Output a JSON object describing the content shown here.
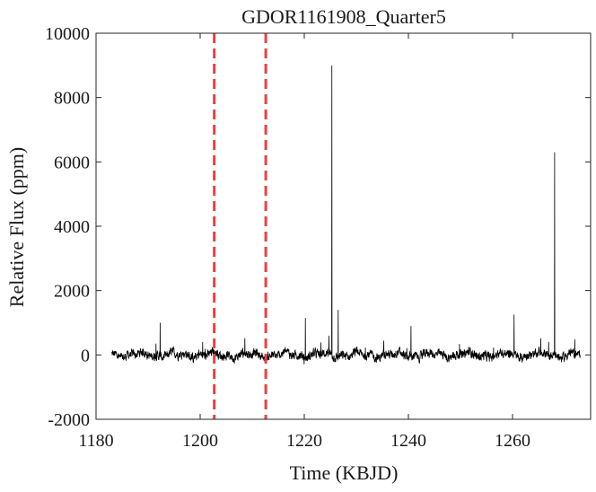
{
  "chart_data": {
    "type": "line",
    "title": "GDOR1161908_Quarter5",
    "xlabel": "Time (KBJD)",
    "ylabel": "Relative Flux (ppm)",
    "xlim": [
      1180,
      1275
    ],
    "ylim": [
      -2000,
      10000
    ],
    "xticks": [
      "1180",
      "1200",
      "1220",
      "1240",
      "1260"
    ],
    "yticks": [
      "-2000",
      "0",
      "2000",
      "4000",
      "6000",
      "8000",
      "10000"
    ],
    "grid": false,
    "series": [
      {
        "color": "#000000",
        "x_range": [
          1183,
          1273
        ],
        "baseline": 0,
        "noise_amplitude": 250,
        "spikes": [
          {
            "x": 1192.3,
            "y": 1000
          },
          {
            "x": 1220.2,
            "y": 1150
          },
          {
            "x": 1225.3,
            "y": 9000
          },
          {
            "x": 1226.5,
            "y": 1400
          },
          {
            "x": 1240.5,
            "y": 900
          },
          {
            "x": 1260.3,
            "y": 1250
          },
          {
            "x": 1268.1,
            "y": 6300
          }
        ]
      }
    ],
    "vertical_lines": [
      {
        "x": 1202.7,
        "style": "dashed",
        "color": "#ef4040"
      },
      {
        "x": 1212.6,
        "style": "dashed",
        "color": "#ef4040"
      }
    ]
  }
}
